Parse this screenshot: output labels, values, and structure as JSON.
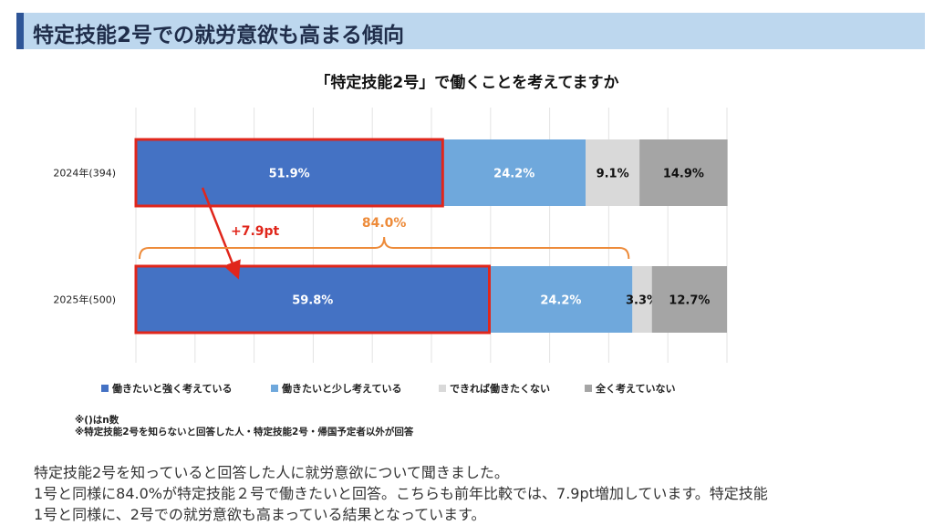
{
  "header": {
    "title": "特定技能2号での就労意欲も高まる傾向"
  },
  "chart_data": {
    "type": "bar",
    "orientation": "horizontal-stacked-100",
    "title": "「特定技能2号」で働くことを考えてますか",
    "categories": [
      "2024年(394)",
      "2025年(500)"
    ],
    "series": [
      {
        "name": "働きたいと強く考えている",
        "values": [
          51.9,
          59.8
        ],
        "labels": [
          "51.9%",
          "59.8%"
        ],
        "color": "#4472c4",
        "label_color": "#ffffff"
      },
      {
        "name": "働きたいと少し考えている",
        "values": [
          24.2,
          24.2
        ],
        "labels": [
          "24.2%",
          "24.2%"
        ],
        "color": "#6fa8dc",
        "label_color": "#ffffff"
      },
      {
        "name": "できれば働きたくない",
        "values": [
          9.1,
          3.3
        ],
        "labels": [
          "9.1%",
          "3.3%"
        ],
        "color": "#d9d9d9",
        "label_color": "#111111"
      },
      {
        "name": "全く考えていない",
        "values": [
          14.9,
          12.7
        ],
        "labels": [
          "14.9%",
          "12.7%"
        ],
        "color": "#a5a5a5",
        "label_color": "#111111"
      }
    ],
    "xlim": [
      0,
      100
    ],
    "grid": true,
    "legend": "bottom",
    "annotations": {
      "increase": "+7.9pt",
      "increase_color": "#e0261b",
      "bracket_total": "84.0%",
      "bracket_color": "#ed8b3a",
      "highlight_color": "#e0261b"
    }
  },
  "notes": {
    "line1": "※()はn数",
    "line2": "※特定技能2号を知らないと回答した人・特定技能2号・帰国予定者以外が回答"
  },
  "description": {
    "line1": "特定技能2号を知っていると回答した人に就労意欲について聞きました。",
    "line2": "1号と同様に84.0%が特定技能２号で働きたいと回答。こちらも前年比較では、7.9pt増加しています。特定技能",
    "line3": "1号と同様に、2号での就労意欲も高まっている結果となっています。"
  }
}
